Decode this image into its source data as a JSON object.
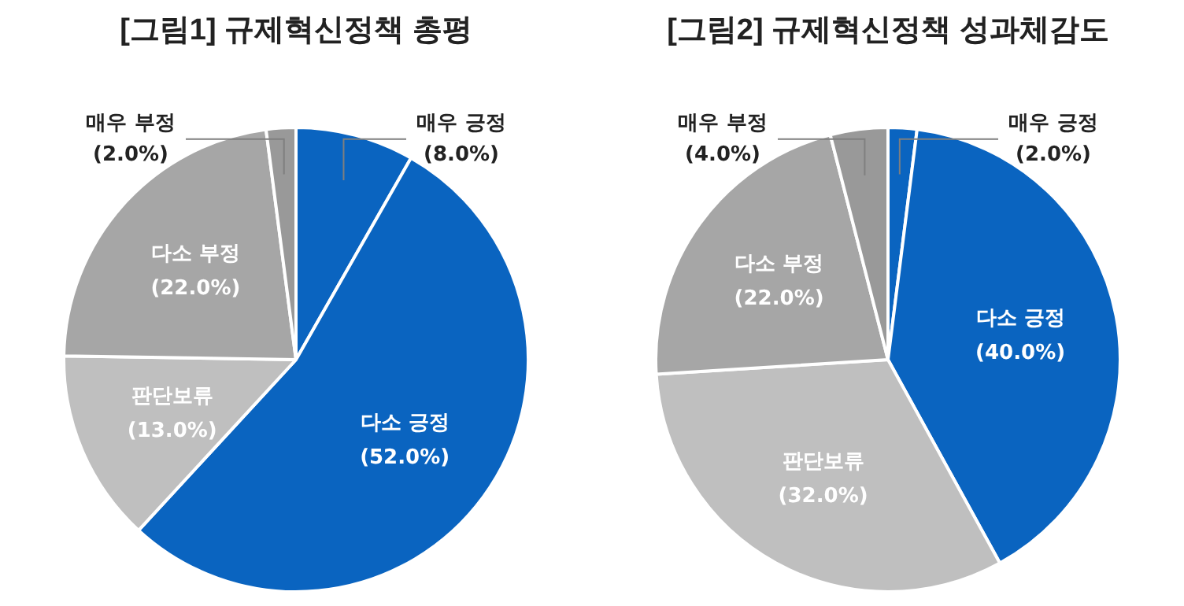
{
  "chart_data": [
    {
      "type": "pie",
      "title": "[그림1] 규제혁신정책 총평",
      "categories": [
        "매우 긍정",
        "다소 긍정",
        "판단보류",
        "다소 부정",
        "매우 부정"
      ],
      "values": [
        8,
        52,
        13,
        22,
        2
      ],
      "colors": [
        "#0a64c0",
        "#0a64c0",
        "#bfbfbf",
        "#a6a6a6",
        "#999999"
      ],
      "value_labels": [
        "(8.0%)",
        "(52.0%)",
        "(13.0%)",
        "(22.0%)",
        "(2.0%)"
      ],
      "legend": false
    },
    {
      "type": "pie",
      "title": "[그림2] 규제혁신정책 성과체감도",
      "categories": [
        "매우 긍정",
        "다소 긍정",
        "판단보류",
        "다소 부정",
        "매우 부정"
      ],
      "values": [
        2,
        40,
        32,
        22,
        4
      ],
      "colors": [
        "#0a64c0",
        "#0a64c0",
        "#bfbfbf",
        "#a6a6a6",
        "#999999"
      ],
      "value_labels": [
        "(2.0%)",
        "(40.0%)",
        "(32.0%)",
        "(22.0%)",
        "(4.0%)"
      ],
      "legend": false
    }
  ]
}
